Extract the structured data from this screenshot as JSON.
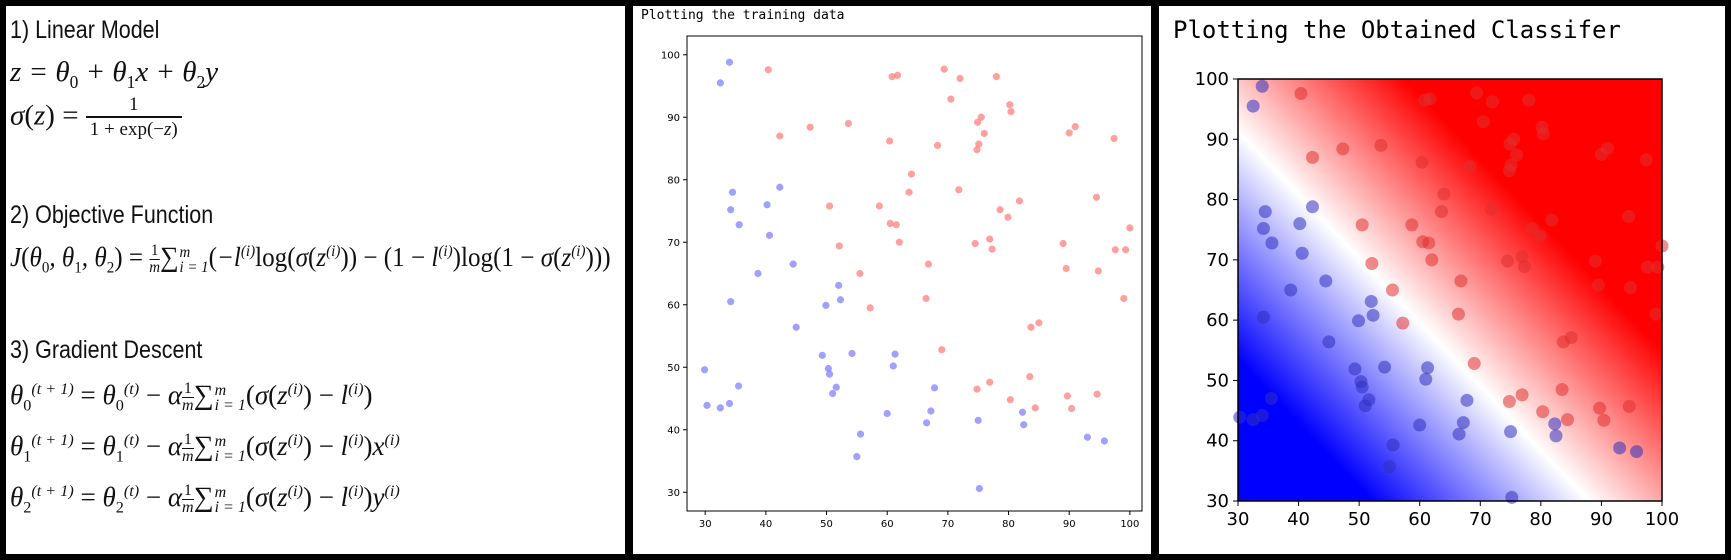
{
  "formulas": {
    "sec1_title": "1) Linear Model",
    "sec2_title": "2) Objective Function",
    "sec3_title": "3) Gradient Descent"
  },
  "chart_data": [
    {
      "type": "scatter",
      "title": "Plotting the training data",
      "xlim": [
        27,
        102
      ],
      "ylim": [
        27,
        103
      ],
      "xticks": [
        30,
        40,
        50,
        60,
        70,
        80,
        90,
        100
      ],
      "yticks": [
        30,
        40,
        50,
        60,
        70,
        80,
        90,
        100
      ],
      "grid": false,
      "series": [
        {
          "color": "#8080ff",
          "points": [
            [
              34.0,
              98.8
            ],
            [
              32.5,
              95.5
            ],
            [
              34.5,
              78.0
            ],
            [
              34.2,
              75.2
            ],
            [
              35.6,
              72.8
            ],
            [
              40.2,
              76.0
            ],
            [
              42.3,
              78.8
            ],
            [
              40.6,
              71.1
            ],
            [
              38.7,
              65.0
            ],
            [
              44.5,
              66.5
            ],
            [
              34.2,
              60.5
            ],
            [
              45.0,
              56.4
            ],
            [
              52.0,
              63.1
            ],
            [
              52.3,
              60.8
            ],
            [
              49.9,
              59.9
            ],
            [
              29.9,
              49.6
            ],
            [
              30.3,
              43.9
            ],
            [
              32.5,
              43.5
            ],
            [
              34.0,
              44.2
            ],
            [
              35.5,
              47.0
            ],
            [
              49.3,
              51.9
            ],
            [
              50.3,
              49.8
            ],
            [
              50.5,
              48.9
            ],
            [
              51.6,
              46.8
            ],
            [
              51.0,
              45.8
            ],
            [
              54.2,
              52.2
            ],
            [
              55.6,
              39.3
            ],
            [
              55.0,
              35.7
            ],
            [
              61.3,
              52.1
            ],
            [
              61.0,
              50.2
            ],
            [
              60.0,
              42.6
            ],
            [
              67.8,
              46.7
            ],
            [
              67.2,
              43.0
            ],
            [
              66.5,
              41.1
            ],
            [
              75.0,
              41.5
            ],
            [
              75.2,
              30.6
            ],
            [
              82.3,
              42.8
            ],
            [
              82.5,
              40.8
            ],
            [
              93.0,
              38.8
            ],
            [
              95.8,
              38.2
            ]
          ]
        },
        {
          "color": "#ff8080",
          "points": [
            [
              40.4,
              97.6
            ],
            [
              60.8,
              96.5
            ],
            [
              61.7,
              96.7
            ],
            [
              69.4,
              97.7
            ],
            [
              72.0,
              96.2
            ],
            [
              78.0,
              96.5
            ],
            [
              70.5,
              92.9
            ],
            [
              80.2,
              92.0
            ],
            [
              80.4,
              90.9
            ],
            [
              75.5,
              90.0
            ],
            [
              74.9,
              89.2
            ],
            [
              47.3,
              88.4
            ],
            [
              53.6,
              89.0
            ],
            [
              60.4,
              86.2
            ],
            [
              68.3,
              85.5
            ],
            [
              75.1,
              85.7
            ],
            [
              74.8,
              84.8
            ],
            [
              76.0,
              87.4
            ],
            [
              90.0,
              87.5
            ],
            [
              91.0,
              88.5
            ],
            [
              97.4,
              86.6
            ],
            [
              42.3,
              87.0
            ],
            [
              64.0,
              80.9
            ],
            [
              63.6,
              78.0
            ],
            [
              71.8,
              78.4
            ],
            [
              50.5,
              75.8
            ],
            [
              58.7,
              75.8
            ],
            [
              78.6,
              75.2
            ],
            [
              79.9,
              74.0
            ],
            [
              81.8,
              76.6
            ],
            [
              94.5,
              77.2
            ],
            [
              60.5,
              73.0
            ],
            [
              61.5,
              72.8
            ],
            [
              62.0,
              70.0
            ],
            [
              52.1,
              69.4
            ],
            [
              55.5,
              65.0
            ],
            [
              66.8,
              66.5
            ],
            [
              74.5,
              69.8
            ],
            [
              76.9,
              70.5
            ],
            [
              77.3,
              68.9
            ],
            [
              89.0,
              69.8
            ],
            [
              97.6,
              68.8
            ],
            [
              99.3,
              68.8
            ],
            [
              100.0,
              72.3
            ],
            [
              89.5,
              65.8
            ],
            [
              94.8,
              65.4
            ],
            [
              57.2,
              59.5
            ],
            [
              66.4,
              61.0
            ],
            [
              99.0,
              61.0
            ],
            [
              69.0,
              52.8
            ],
            [
              83.7,
              56.4
            ],
            [
              85.0,
              57.1
            ],
            [
              74.8,
              46.5
            ],
            [
              76.9,
              47.6
            ],
            [
              83.5,
              48.5
            ],
            [
              80.3,
              44.8
            ],
            [
              84.4,
              43.5
            ],
            [
              89.7,
              45.4
            ],
            [
              90.4,
              43.4
            ],
            [
              94.6,
              45.7
            ]
          ]
        }
      ]
    },
    {
      "type": "heatmap",
      "title": "Plotting the Obtained Classifer",
      "xlim": [
        30,
        100
      ],
      "ylim": [
        30,
        100
      ],
      "xticks": [
        30,
        40,
        50,
        60,
        70,
        80,
        90,
        100
      ],
      "yticks": [
        30,
        40,
        50,
        60,
        70,
        80,
        90,
        100
      ],
      "colormap": "bwr",
      "decision_boundary": {
        "slope": -1.05,
        "intercept": 122.5
      },
      "overlay": "training data points (same as panel 1)"
    }
  ]
}
